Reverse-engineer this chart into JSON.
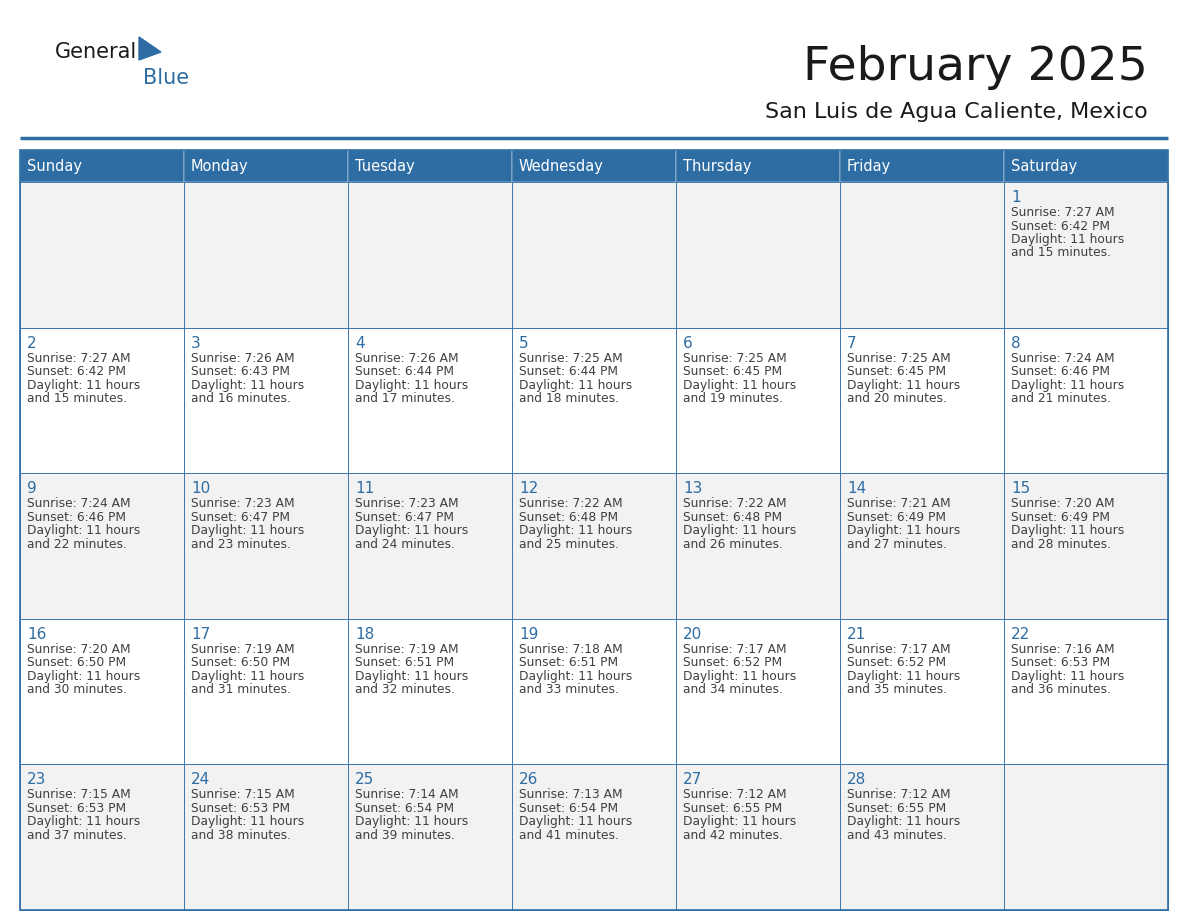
{
  "title": "February 2025",
  "subtitle": "San Luis de Agua Caliente, Mexico",
  "header_bg": "#2e6da4",
  "header_text_color": "#ffffff",
  "cell_bg_odd": "#f2f2f2",
  "cell_bg_even": "#ffffff",
  "day_number_color": "#2e6da4",
  "info_text_color": "#404040",
  "border_color": "#2e6da4",
  "logo_general_color": "#1a1a1a",
  "logo_blue_color": "#2e6da4",
  "logo_triangle_color": "#2e6da4",
  "days_of_week": [
    "Sunday",
    "Monday",
    "Tuesday",
    "Wednesday",
    "Thursday",
    "Friday",
    "Saturday"
  ],
  "weeks": [
    [
      null,
      null,
      null,
      null,
      null,
      null,
      1
    ],
    [
      2,
      3,
      4,
      5,
      6,
      7,
      8
    ],
    [
      9,
      10,
      11,
      12,
      13,
      14,
      15
    ],
    [
      16,
      17,
      18,
      19,
      20,
      21,
      22
    ],
    [
      23,
      24,
      25,
      26,
      27,
      28,
      null
    ]
  ],
  "cell_data": {
    "1": {
      "sunrise": "7:27 AM",
      "sunset": "6:42 PM",
      "daylight_h": "11 hours",
      "daylight_m": "and 15 minutes."
    },
    "2": {
      "sunrise": "7:27 AM",
      "sunset": "6:42 PM",
      "daylight_h": "11 hours",
      "daylight_m": "and 15 minutes."
    },
    "3": {
      "sunrise": "7:26 AM",
      "sunset": "6:43 PM",
      "daylight_h": "11 hours",
      "daylight_m": "and 16 minutes."
    },
    "4": {
      "sunrise": "7:26 AM",
      "sunset": "6:44 PM",
      "daylight_h": "11 hours",
      "daylight_m": "and 17 minutes."
    },
    "5": {
      "sunrise": "7:25 AM",
      "sunset": "6:44 PM",
      "daylight_h": "11 hours",
      "daylight_m": "and 18 minutes."
    },
    "6": {
      "sunrise": "7:25 AM",
      "sunset": "6:45 PM",
      "daylight_h": "11 hours",
      "daylight_m": "and 19 minutes."
    },
    "7": {
      "sunrise": "7:25 AM",
      "sunset": "6:45 PM",
      "daylight_h": "11 hours",
      "daylight_m": "and 20 minutes."
    },
    "8": {
      "sunrise": "7:24 AM",
      "sunset": "6:46 PM",
      "daylight_h": "11 hours",
      "daylight_m": "and 21 minutes."
    },
    "9": {
      "sunrise": "7:24 AM",
      "sunset": "6:46 PM",
      "daylight_h": "11 hours",
      "daylight_m": "and 22 minutes."
    },
    "10": {
      "sunrise": "7:23 AM",
      "sunset": "6:47 PM",
      "daylight_h": "11 hours",
      "daylight_m": "and 23 minutes."
    },
    "11": {
      "sunrise": "7:23 AM",
      "sunset": "6:47 PM",
      "daylight_h": "11 hours",
      "daylight_m": "and 24 minutes."
    },
    "12": {
      "sunrise": "7:22 AM",
      "sunset": "6:48 PM",
      "daylight_h": "11 hours",
      "daylight_m": "and 25 minutes."
    },
    "13": {
      "sunrise": "7:22 AM",
      "sunset": "6:48 PM",
      "daylight_h": "11 hours",
      "daylight_m": "and 26 minutes."
    },
    "14": {
      "sunrise": "7:21 AM",
      "sunset": "6:49 PM",
      "daylight_h": "11 hours",
      "daylight_m": "and 27 minutes."
    },
    "15": {
      "sunrise": "7:20 AM",
      "sunset": "6:49 PM",
      "daylight_h": "11 hours",
      "daylight_m": "and 28 minutes."
    },
    "16": {
      "sunrise": "7:20 AM",
      "sunset": "6:50 PM",
      "daylight_h": "11 hours",
      "daylight_m": "and 30 minutes."
    },
    "17": {
      "sunrise": "7:19 AM",
      "sunset": "6:50 PM",
      "daylight_h": "11 hours",
      "daylight_m": "and 31 minutes."
    },
    "18": {
      "sunrise": "7:19 AM",
      "sunset": "6:51 PM",
      "daylight_h": "11 hours",
      "daylight_m": "and 32 minutes."
    },
    "19": {
      "sunrise": "7:18 AM",
      "sunset": "6:51 PM",
      "daylight_h": "11 hours",
      "daylight_m": "and 33 minutes."
    },
    "20": {
      "sunrise": "7:17 AM",
      "sunset": "6:52 PM",
      "daylight_h": "11 hours",
      "daylight_m": "and 34 minutes."
    },
    "21": {
      "sunrise": "7:17 AM",
      "sunset": "6:52 PM",
      "daylight_h": "11 hours",
      "daylight_m": "and 35 minutes."
    },
    "22": {
      "sunrise": "7:16 AM",
      "sunset": "6:53 PM",
      "daylight_h": "11 hours",
      "daylight_m": "and 36 minutes."
    },
    "23": {
      "sunrise": "7:15 AM",
      "sunset": "6:53 PM",
      "daylight_h": "11 hours",
      "daylight_m": "and 37 minutes."
    },
    "24": {
      "sunrise": "7:15 AM",
      "sunset": "6:53 PM",
      "daylight_h": "11 hours",
      "daylight_m": "and 38 minutes."
    },
    "25": {
      "sunrise": "7:14 AM",
      "sunset": "6:54 PM",
      "daylight_h": "11 hours",
      "daylight_m": "and 39 minutes."
    },
    "26": {
      "sunrise": "7:13 AM",
      "sunset": "6:54 PM",
      "daylight_h": "11 hours",
      "daylight_m": "and 41 minutes."
    },
    "27": {
      "sunrise": "7:12 AM",
      "sunset": "6:55 PM",
      "daylight_h": "11 hours",
      "daylight_m": "and 42 minutes."
    },
    "28": {
      "sunrise": "7:12 AM",
      "sunset": "6:55 PM",
      "daylight_h": "11 hours",
      "daylight_m": "and 43 minutes."
    }
  }
}
